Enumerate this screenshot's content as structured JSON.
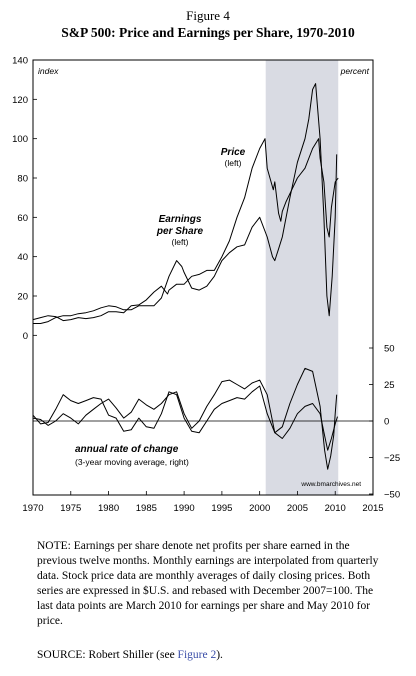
{
  "figure_label": "Figure 4",
  "title": "S&P 500: Price and Earnings per Share, 1970-2010",
  "chart_data": {
    "type": "line",
    "title": "S&P 500: Price and Earnings per Share, 1970-2010",
    "x_ticks": [
      1970,
      1975,
      1980,
      1985,
      1990,
      1995,
      2000,
      2005,
      2010,
      2015
    ],
    "xlim": [
      1970,
      2015
    ],
    "left_axis": {
      "label": "index",
      "ticks": [
        0,
        20,
        40,
        60,
        80,
        100,
        120,
        140
      ],
      "ylim": [
        -11,
        140
      ]
    },
    "right_axis": {
      "label": "percent",
      "ticks": [
        50,
        25,
        0,
        -25,
        -50
      ],
      "display_ticks": [
        "50",
        "25",
        "0",
        "−25",
        "−50"
      ],
      "ylim": [
        -50,
        51
      ]
    },
    "shaded_region": [
      2000.8,
      2010.4
    ],
    "grid": false,
    "series": [
      {
        "name": "Price",
        "axis": "left",
        "points": [
          [
            1970,
            8
          ],
          [
            1971,
            9
          ],
          [
            1972,
            10
          ],
          [
            1973,
            9.5
          ],
          [
            1974,
            7.5
          ],
          [
            1975,
            8
          ],
          [
            1976,
            9
          ],
          [
            1977,
            8.5
          ],
          [
            1978,
            9
          ],
          [
            1979,
            10
          ],
          [
            1980,
            12
          ],
          [
            1981,
            12
          ],
          [
            1982,
            11.5
          ],
          [
            1983,
            15
          ],
          [
            1984,
            15.5
          ],
          [
            1985,
            18
          ],
          [
            1986,
            22
          ],
          [
            1987,
            25
          ],
          [
            1987.8,
            21
          ],
          [
            1988,
            23
          ],
          [
            1989,
            26
          ],
          [
            1990,
            26
          ],
          [
            1991,
            30
          ],
          [
            1992,
            31
          ],
          [
            1993,
            33
          ],
          [
            1994,
            33
          ],
          [
            1995,
            40
          ],
          [
            1996,
            48
          ],
          [
            1997,
            60
          ],
          [
            1998,
            70
          ],
          [
            1999,
            85
          ],
          [
            2000,
            95
          ],
          [
            2000.7,
            100
          ],
          [
            2001,
            85
          ],
          [
            2001.8,
            74
          ],
          [
            2002,
            78
          ],
          [
            2002.5,
            62
          ],
          [
            2002.8,
            58
          ],
          [
            2003,
            63
          ],
          [
            2003.5,
            68
          ],
          [
            2004,
            72
          ],
          [
            2005,
            80
          ],
          [
            2006,
            85
          ],
          [
            2007,
            95
          ],
          [
            2007.8,
            100
          ],
          [
            2008,
            90
          ],
          [
            2008.5,
            78
          ],
          [
            2008.9,
            55
          ],
          [
            2009.2,
            50
          ],
          [
            2009.5,
            65
          ],
          [
            2010,
            78
          ],
          [
            2010.4,
            80
          ]
        ]
      },
      {
        "name": "Earnings per Share",
        "axis": "left",
        "points": [
          [
            1970,
            6
          ],
          [
            1971,
            6
          ],
          [
            1972,
            7
          ],
          [
            1973,
            9
          ],
          [
            1974,
            10
          ],
          [
            1975,
            10
          ],
          [
            1976,
            11
          ],
          [
            1977,
            11.5
          ],
          [
            1978,
            12.5
          ],
          [
            1979,
            14
          ],
          [
            1980,
            15
          ],
          [
            1981,
            14.5
          ],
          [
            1982,
            13
          ],
          [
            1983,
            13
          ],
          [
            1984,
            15
          ],
          [
            1985,
            15
          ],
          [
            1986,
            15
          ],
          [
            1987,
            19
          ],
          [
            1988,
            30
          ],
          [
            1989,
            38
          ],
          [
            1989.7,
            35
          ],
          [
            1990,
            32
          ],
          [
            1991,
            24
          ],
          [
            1992,
            23
          ],
          [
            1993,
            25
          ],
          [
            1994,
            30
          ],
          [
            1995,
            38
          ],
          [
            1996,
            42
          ],
          [
            1997,
            45
          ],
          [
            1998,
            46
          ],
          [
            1999,
            55
          ],
          [
            2000,
            60
          ],
          [
            2001,
            50
          ],
          [
            2001.7,
            40
          ],
          [
            2002,
            38
          ],
          [
            2002.5,
            44
          ],
          [
            2003,
            50
          ],
          [
            2004,
            70
          ],
          [
            2005,
            88
          ],
          [
            2006,
            100
          ],
          [
            2006.5,
            110
          ],
          [
            2007,
            125
          ],
          [
            2007.4,
            128
          ],
          [
            2008,
            100
          ],
          [
            2008.5,
            60
          ],
          [
            2008.9,
            20
          ],
          [
            2009.2,
            10
          ],
          [
            2009.6,
            30
          ],
          [
            2010,
            60
          ],
          [
            2010.2,
            92
          ]
        ]
      },
      {
        "name": "",
        "axis": "right",
        "points": [
          [
            1970,
            2
          ],
          [
            1971,
            1
          ],
          [
            1972,
            -3
          ],
          [
            1973,
            0
          ],
          [
            1974,
            5
          ],
          [
            1975,
            2
          ],
          [
            1976,
            -2
          ],
          [
            1977,
            4
          ],
          [
            1978,
            8
          ],
          [
            1979,
            12
          ],
          [
            1980,
            15
          ],
          [
            1981,
            9
          ],
          [
            1982,
            2
          ],
          [
            1983,
            6
          ],
          [
            1984,
            15
          ],
          [
            1985,
            11
          ],
          [
            1986,
            8
          ],
          [
            1987,
            12
          ],
          [
            1988,
            18
          ],
          [
            1989,
            20
          ],
          [
            1990,
            5
          ],
          [
            1991,
            -5
          ],
          [
            1992,
            0
          ],
          [
            1993,
            10
          ],
          [
            1994,
            18
          ],
          [
            1995,
            27
          ],
          [
            1996,
            28
          ],
          [
            1997,
            25
          ],
          [
            1998,
            22
          ],
          [
            1999,
            26
          ],
          [
            2000,
            28
          ],
          [
            2001,
            18
          ],
          [
            2002,
            -8
          ],
          [
            2003,
            -12
          ],
          [
            2004,
            -5
          ],
          [
            2005,
            5
          ],
          [
            2006,
            10
          ],
          [
            2007,
            12
          ],
          [
            2008,
            5
          ],
          [
            2008.6,
            -10
          ],
          [
            2009,
            -20
          ],
          [
            2009.5,
            -12
          ],
          [
            2010,
            -2
          ],
          [
            2010.3,
            3
          ]
        ]
      },
      {
        "name": "",
        "axis": "right",
        "points": [
          [
            1970,
            4
          ],
          [
            1971,
            -2
          ],
          [
            1972,
            -1
          ],
          [
            1973,
            8
          ],
          [
            1974,
            18
          ],
          [
            1975,
            14
          ],
          [
            1976,
            12
          ],
          [
            1977,
            14
          ],
          [
            1978,
            16
          ],
          [
            1979,
            15
          ],
          [
            1980,
            4
          ],
          [
            1981,
            2
          ],
          [
            1982,
            -7
          ],
          [
            1983,
            -6
          ],
          [
            1984,
            2
          ],
          [
            1985,
            -4
          ],
          [
            1986,
            -5
          ],
          [
            1987,
            5
          ],
          [
            1988,
            20
          ],
          [
            1989,
            18
          ],
          [
            1990,
            2
          ],
          [
            1991,
            -7
          ],
          [
            1992,
            -8
          ],
          [
            1993,
            0
          ],
          [
            1994,
            8
          ],
          [
            1995,
            12
          ],
          [
            1996,
            14
          ],
          [
            1997,
            16
          ],
          [
            1998,
            15
          ],
          [
            1999,
            20
          ],
          [
            2000,
            24
          ],
          [
            2001,
            5
          ],
          [
            2002,
            -8
          ],
          [
            2003,
            -4
          ],
          [
            2004,
            12
          ],
          [
            2005,
            25
          ],
          [
            2006,
            36
          ],
          [
            2007,
            34
          ],
          [
            2008,
            10
          ],
          [
            2008.6,
            -20
          ],
          [
            2009,
            -33
          ],
          [
            2009.4,
            -24
          ],
          [
            2009.8,
            -10
          ],
          [
            2010,
            5
          ],
          [
            2010.2,
            18
          ]
        ]
      }
    ],
    "annotations": {
      "price_label": "Price",
      "price_sub": "(left)",
      "eps_line1": "Earnings",
      "eps_line2": "per Share",
      "eps_sub": "(left)",
      "rate_label": "annual rate of change",
      "rate_sub": "(3-year moving average, right)",
      "credit": "www.bmarchives.net"
    }
  },
  "note": {
    "text1": "NOTE: Earnings per share denote net profits per share earned in the previous twelve months. Monthly earnings are interpolated from quarterly data. Stock price data are monthly averages of daily closing prices. Both series are expressed in $U.S. and rebased with December 2007=100. The last data points are March 2010 for earnings per share and May 2010 for price."
  },
  "source": {
    "prefix": "SOURCE: Robert Shiller (see ",
    "link": "Figure 2",
    "suffix": ")."
  }
}
